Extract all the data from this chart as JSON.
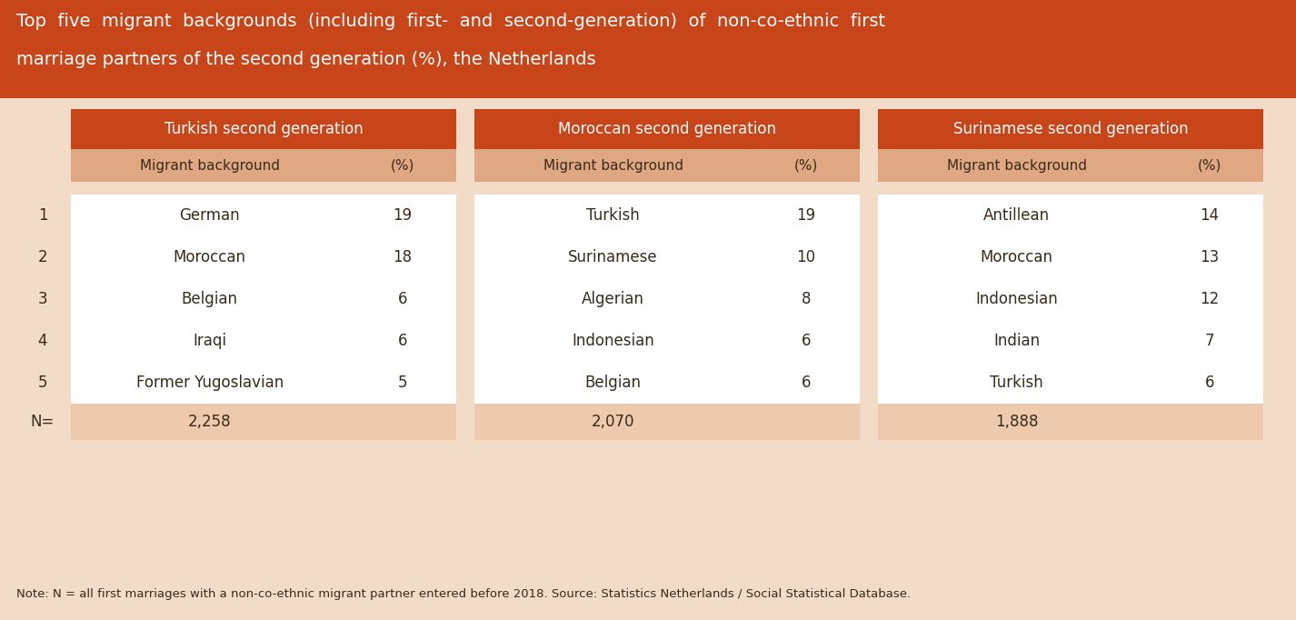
{
  "title_line1": "Top  five  migrant  backgrounds  (including  first-  and  second-generation)  of  non-co-ethnic  first",
  "title_line2": "marriage partners of the second generation (%), the Netherlands",
  "title_bg": "#C8451A",
  "title_color": "#FFFFFF",
  "page_bg": "#F2DCC8",
  "header_orange_dark": "#C8451A",
  "header_orange_light": "#DFA882",
  "cell_white": "#FFFFFF",
  "cell_light": "#EDCAAD",
  "text_dark": "#3A2A1A",
  "columns": [
    {
      "group": "Turkish second generation",
      "subheaders": [
        "Migrant background",
        "(%)"
      ],
      "rows": [
        [
          "German",
          "19"
        ],
        [
          "Moroccan",
          "18"
        ],
        [
          "Belgian",
          "6"
        ],
        [
          "Iraqi",
          "6"
        ],
        [
          "Former Yugoslavian",
          "5"
        ]
      ],
      "n_value": "2,258"
    },
    {
      "group": "Moroccan second generation",
      "subheaders": [
        "Migrant background",
        "(%)"
      ],
      "rows": [
        [
          "Turkish",
          "19"
        ],
        [
          "Surinamese",
          "10"
        ],
        [
          "Algerian",
          "8"
        ],
        [
          "Indonesian",
          "6"
        ],
        [
          "Belgian",
          "6"
        ]
      ],
      "n_value": "2,070"
    },
    {
      "group": "Surinamese second generation",
      "subheaders": [
        "Migrant background",
        "(%)"
      ],
      "rows": [
        [
          "Antillean",
          "14"
        ],
        [
          "Moroccan",
          "13"
        ],
        [
          "Indonesian",
          "12"
        ],
        [
          "Indian",
          "7"
        ],
        [
          "Turkish",
          "6"
        ]
      ],
      "n_value": "1,888"
    }
  ],
  "row_labels": [
    "1",
    "2",
    "3",
    "4",
    "5",
    "N="
  ],
  "note": "Note: N = all first marriages with a non-co-ethnic migrant partner entered before 2018. Source: Statistics Netherlands / Social Statistical Database."
}
